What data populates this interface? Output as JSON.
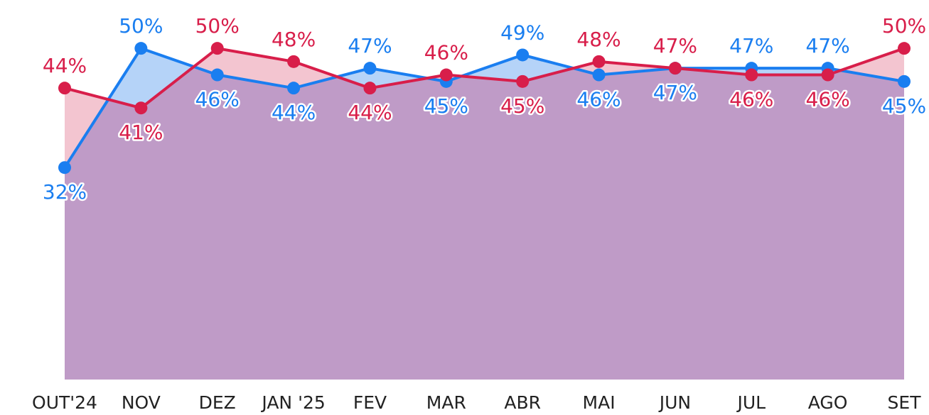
{
  "chart_data": {
    "type": "line",
    "categories": [
      "OUT'24",
      "NOV",
      "DEZ",
      "JAN '25",
      "FEV",
      "MAR",
      "ABR",
      "MAI",
      "JUN",
      "JUL",
      "AGO",
      "SET"
    ],
    "series": [
      {
        "name": null,
        "color": "#1a7ef0",
        "area_color": "#b5d3f8",
        "values": [
          32,
          50,
          46,
          44,
          47,
          45,
          49,
          46,
          47,
          47,
          47,
          45
        ],
        "value_labels": [
          "32%",
          "50%",
          "46%",
          "44%",
          "47%",
          "45%",
          "49%",
          "46%",
          "47%",
          "47%",
          "47%",
          "45%"
        ]
      },
      {
        "name": null,
        "color": "#d81e4a",
        "area_color": "#f3c5d0",
        "values": [
          44,
          41,
          50,
          48,
          44,
          46,
          45,
          48,
          47,
          46,
          46,
          50
        ],
        "value_labels": [
          "44%",
          "41%",
          "50%",
          "48%",
          "44%",
          "46%",
          "45%",
          "48%",
          "47%",
          "46%",
          "46%",
          "50%"
        ]
      }
    ],
    "overlap_color": "#bf9bc7",
    "ylim": [
      0,
      57.3
    ]
  }
}
